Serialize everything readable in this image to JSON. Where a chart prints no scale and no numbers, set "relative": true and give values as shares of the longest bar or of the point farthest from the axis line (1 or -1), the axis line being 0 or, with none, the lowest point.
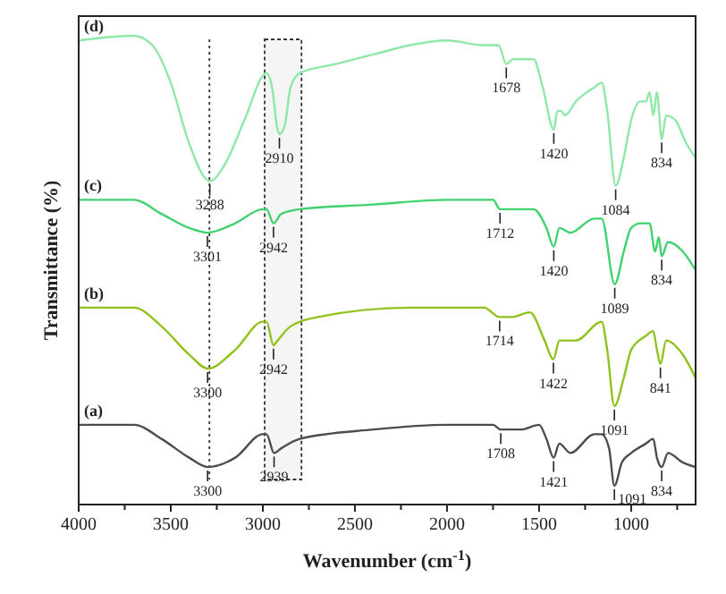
{
  "chart_data": {
    "type": "line",
    "relative": true,
    "xlabel": "Wavenumber (cm$^{-1}$)",
    "ylabel": "Transmittance (%)",
    "xlim": [
      4000,
      650
    ],
    "xticks": [
      4000,
      {
        "value": 3750,
        "label": null
      },
      3500,
      {
        "value": 3250,
        "label": null
      },
      3000,
      {
        "value": 2750,
        "label": null
      },
      2500,
      {
        "value": 2250,
        "label": null
      },
      2000,
      {
        "value": 1750,
        "label": null
      },
      1500,
      {
        "value": 1250,
        "label": null
      },
      1000,
      {
        "value": 750,
        "label": null
      }
    ],
    "tick_labels": "x",
    "grid": false,
    "legend": false,
    "marker": "none",
    "line_style": "solid",
    "series": [
      {
        "name": "(d)",
        "color": "#8ee8a8",
        "x": [
          4000,
          3700,
          3600,
          3500,
          3400,
          3288,
          3200,
          3100,
          2980,
          2950,
          2920,
          2910,
          2880,
          2850,
          2800,
          2600,
          2400,
          2200,
          2000,
          1800,
          1720,
          1678,
          1640,
          1600,
          1530,
          1480,
          1420,
          1400,
          1380,
          1360,
          1300,
          1200,
          1160,
          1130,
          1084,
          1040,
          1000,
          950,
          920,
          900,
          880,
          860,
          834,
          810,
          760,
          700,
          650
        ],
        "values": [
          0.99,
          1.0,
          0.98,
          0.9,
          0.77,
          0.69,
          0.73,
          0.82,
          0.92,
          0.89,
          0.8,
          0.79,
          0.81,
          0.89,
          0.92,
          0.94,
          0.96,
          0.98,
          0.99,
          0.98,
          0.98,
          0.94,
          0.95,
          0.95,
          0.95,
          0.89,
          0.8,
          0.84,
          0.84,
          0.83,
          0.86,
          0.89,
          0.9,
          0.84,
          0.68,
          0.74,
          0.82,
          0.86,
          0.86,
          0.88,
          0.83,
          0.88,
          0.78,
          0.83,
          0.82,
          0.77,
          0.74
        ]
      },
      {
        "name": "(c)",
        "color": "#3fd26e",
        "x": [
          4000,
          3700,
          3550,
          3400,
          3301,
          3150,
          3000,
          2980,
          2942,
          2900,
          2800,
          2400,
          2000,
          1750,
          1712,
          1650,
          1530,
          1460,
          1420,
          1390,
          1330,
          1200,
          1160,
          1089,
          1040,
          1000,
          950,
          900,
          870,
          850,
          834,
          800,
          720,
          650
        ],
        "values": [
          0.65,
          0.65,
          0.62,
          0.59,
          0.58,
          0.6,
          0.63,
          0.63,
          0.6,
          0.62,
          0.63,
          0.64,
          0.65,
          0.65,
          0.63,
          0.63,
          0.63,
          0.59,
          0.55,
          0.59,
          0.58,
          0.61,
          0.61,
          0.47,
          0.54,
          0.59,
          0.6,
          0.6,
          0.54,
          0.57,
          0.53,
          0.56,
          0.54,
          0.5
        ]
      },
      {
        "name": "(b)",
        "color": "#8fc21a",
        "x": [
          4000,
          3700,
          3550,
          3400,
          3300,
          3150,
          3000,
          2980,
          2942,
          2920,
          2850,
          2700,
          2200,
          1800,
          1714,
          1650,
          1550,
          1470,
          1422,
          1390,
          1300,
          1160,
          1130,
          1091,
          1040,
          1000,
          920,
          880,
          860,
          841,
          810,
          720,
          650
        ],
        "values": [
          0.42,
          0.42,
          0.38,
          0.32,
          0.29,
          0.33,
          0.39,
          0.39,
          0.34,
          0.35,
          0.38,
          0.4,
          0.42,
          0.42,
          0.4,
          0.4,
          0.41,
          0.35,
          0.31,
          0.35,
          0.35,
          0.39,
          0.33,
          0.21,
          0.27,
          0.33,
          0.36,
          0.37,
          0.33,
          0.3,
          0.35,
          0.32,
          0.27
        ]
      },
      {
        "name": "(a)",
        "color": "#4d4d4d",
        "x": [
          4000,
          3700,
          3550,
          3400,
          3300,
          3150,
          3000,
          2980,
          2939,
          2900,
          2800,
          2400,
          2000,
          1750,
          1708,
          1600,
          1500,
          1460,
          1421,
          1390,
          1330,
          1200,
          1160,
          1120,
          1091,
          1050,
          1000,
          920,
          880,
          860,
          834,
          800,
          720,
          650
        ],
        "values": [
          0.17,
          0.17,
          0.14,
          0.1,
          0.08,
          0.1,
          0.15,
          0.15,
          0.11,
          0.12,
          0.14,
          0.16,
          0.17,
          0.17,
          0.16,
          0.16,
          0.17,
          0.14,
          0.1,
          0.13,
          0.11,
          0.15,
          0.15,
          0.12,
          0.04,
          0.09,
          0.11,
          0.13,
          0.14,
          0.1,
          0.08,
          0.11,
          0.09,
          0.08
        ]
      }
    ],
    "ref_lines": [
      {
        "axis": "x",
        "value": 3290,
        "color": "#333333",
        "line_style": "dotted"
      }
    ],
    "bands": [
      {
        "axis": "x",
        "from": 2990,
        "to": 2790,
        "color": "#333333"
      }
    ],
    "annotations": [
      {
        "text": "3288",
        "x": 3288,
        "y": 0.69
      },
      {
        "text": "2910",
        "x": 2910,
        "y": 0.79
      },
      {
        "text": "1678",
        "x": 1678,
        "y": 0.94
      },
      {
        "text": "1420",
        "x": 1420,
        "y": 0.8
      },
      {
        "text": "1084",
        "x": 1084,
        "y": 0.68
      },
      {
        "text": "834",
        "x": 834,
        "y": 0.78
      },
      {
        "text": "3301",
        "x": 3301,
        "y": 0.58
      },
      {
        "text": "2942",
        "x": 2942,
        "y": 0.6
      },
      {
        "text": "1712",
        "x": 1712,
        "y": 0.63
      },
      {
        "text": "1420",
        "x": 1420,
        "y": 0.55
      },
      {
        "text": "1089",
        "x": 1089,
        "y": 0.47
      },
      {
        "text": "834",
        "x": 834,
        "y": 0.53
      },
      {
        "text": "3300",
        "x": 3300,
        "y": 0.29
      },
      {
        "text": "2942",
        "x": 2942,
        "y": 0.34
      },
      {
        "text": "1714",
        "x": 1714,
        "y": 0.4
      },
      {
        "text": "1422",
        "x": 1422,
        "y": 0.31
      },
      {
        "text": "1091",
        "x": 1091,
        "y": 0.21
      },
      {
        "text": "841",
        "x": 841,
        "y": 0.3
      },
      {
        "text": "3300",
        "x": 3300,
        "y": 0.08
      },
      {
        "text": "2939",
        "x": 2939,
        "y": 0.11
      },
      {
        "text": "1708",
        "x": 1708,
        "y": 0.16
      },
      {
        "text": "1421",
        "x": 1421,
        "y": 0.1
      },
      {
        "text": "1091",
        "x": 1091,
        "y": 0.04
      },
      {
        "text": "834",
        "x": 834,
        "y": 0.08
      }
    ]
  }
}
